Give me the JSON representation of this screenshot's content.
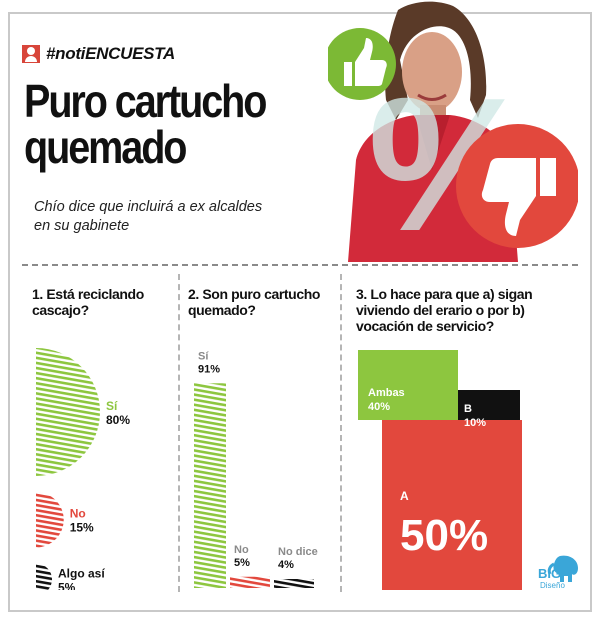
{
  "header": {
    "hashtag": "#notiENCUESTA",
    "title_line1": "Puro cartucho",
    "title_line2": "quemado",
    "subtitle": "Chío dice que incluirá a ex alcaldes en su gabinete",
    "percent_symbol": "%"
  },
  "colors": {
    "green": "#8dc63f",
    "red": "#e2483d",
    "black": "#111111",
    "gray_text": "#8a8a8a"
  },
  "icons": [
    "person-icon",
    "thumbs-up-icon",
    "thumbs-down-icon",
    "elephant-logo-icon"
  ],
  "chart_data": [
    {
      "type": "pie",
      "title": "1. Está reciclando cascajo?",
      "categories": [
        "Sí",
        "No",
        "Algo así"
      ],
      "values": [
        80,
        15,
        5
      ],
      "labels": [
        {
          "name": "Sí",
          "value_text": "80%"
        },
        {
          "name": "No",
          "value_text": "15%"
        },
        {
          "name": "Algo así",
          "value_text": "5%"
        }
      ],
      "colors": [
        "#8dc63f",
        "#e2483d",
        "#111111"
      ]
    },
    {
      "type": "bar",
      "title": "2. Son puro cartucho quemado?",
      "categories": [
        "Sí",
        "No",
        "No dice"
      ],
      "values": [
        91,
        5,
        4
      ],
      "labels": [
        {
          "name": "Sí",
          "value_text": "91%"
        },
        {
          "name": "No",
          "value_text": "5%"
        },
        {
          "name": "No dice",
          "value_text": "4%"
        }
      ],
      "colors": [
        "#8dc63f",
        "#e2483d",
        "#111111"
      ],
      "ylim": [
        0,
        100
      ]
    },
    {
      "type": "treemap",
      "title": "3. Lo hace para que a) sigan viviendo del erario o por b) vocación de servicio?",
      "categories": [
        "Ambas",
        "B",
        "A"
      ],
      "values": [
        40,
        10,
        50
      ],
      "labels": [
        {
          "name": "Ambas",
          "value_text": "40%"
        },
        {
          "name": "B",
          "value_text": "10%"
        },
        {
          "name": "A",
          "value_text": "50%"
        }
      ],
      "colors": [
        "#8dc63f",
        "#111111",
        "#e2483d"
      ]
    }
  ],
  "logo": {
    "brand": "BIG",
    "sub": "Diseño"
  }
}
